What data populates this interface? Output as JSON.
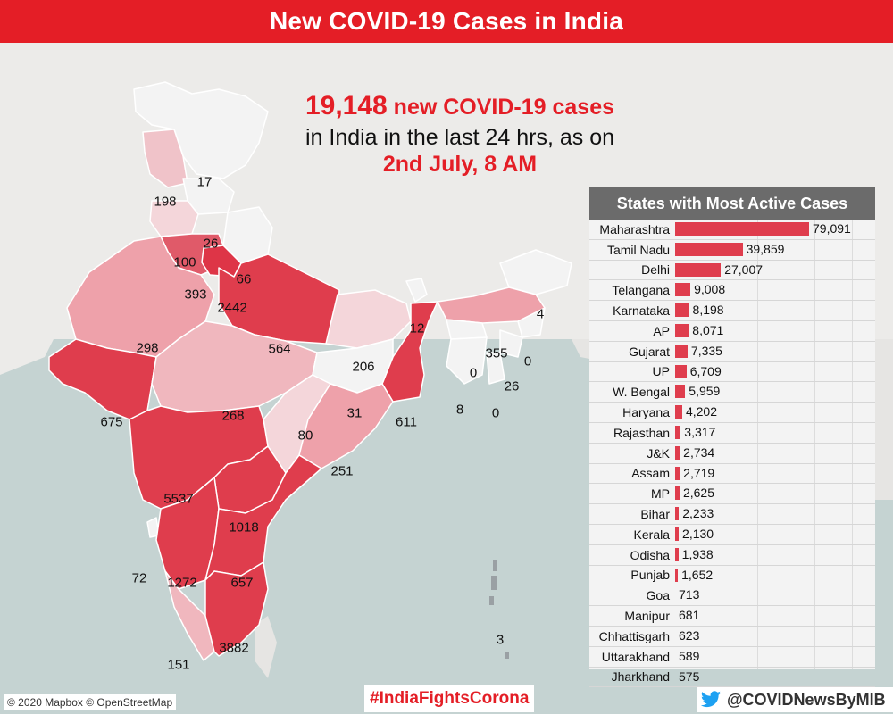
{
  "header": {
    "title": "New COVID-19 Cases in India"
  },
  "headline": {
    "count": "19,148",
    "count_suffix": " new COVID-19 cases",
    "line2": "in India in the last 24 hrs, as on",
    "date": "2nd July, 8 AM"
  },
  "map_labels": {
    "ladakh": "17",
    "himachal": "198",
    "punjab": "26",
    "chandigarh": "100",
    "uttarakhand": "66",
    "haryana": "393",
    "delhi": "2442",
    "rajasthan": "298",
    "up": "564",
    "bihar": "206",
    "sikkim": "12",
    "arunachal": "4",
    "assam": "355",
    "nagaland": "0",
    "meghalaya": "0",
    "manipur": "26",
    "tripura": "8",
    "mizoram": "0",
    "gujarat": "675",
    "mp": "268",
    "jharkhand": "31",
    "wb": "611",
    "chhattisgarh": "80",
    "odisha": "251",
    "maharashtra": "5537",
    "telangana": "1018",
    "goa": "72",
    "karnataka": "1272",
    "ap": "657",
    "kerala": "151",
    "tamilnadu": "3882",
    "andaman": "3"
  },
  "panel": {
    "title": "States with Most Active Cases",
    "max_value": 79091,
    "rows": [
      {
        "state": "Maharashtra",
        "value": 79091,
        "label": "79,091"
      },
      {
        "state": "Tamil Nadu",
        "value": 39859,
        "label": "39,859"
      },
      {
        "state": "Delhi",
        "value": 27007,
        "label": "27,007"
      },
      {
        "state": "Telangana",
        "value": 9008,
        "label": "9,008"
      },
      {
        "state": "Karnataka",
        "value": 8198,
        "label": "8,198"
      },
      {
        "state": "AP",
        "value": 8071,
        "label": "8,071"
      },
      {
        "state": "Gujarat",
        "value": 7335,
        "label": "7,335"
      },
      {
        "state": "UP",
        "value": 6709,
        "label": "6,709"
      },
      {
        "state": "W. Bengal",
        "value": 5959,
        "label": "5,959"
      },
      {
        "state": "Haryana",
        "value": 4202,
        "label": "4,202"
      },
      {
        "state": "Rajasthan",
        "value": 3317,
        "label": "3,317"
      },
      {
        "state": "J&K",
        "value": 2734,
        "label": "2,734"
      },
      {
        "state": "Assam",
        "value": 2719,
        "label": "2,719"
      },
      {
        "state": "MP",
        "value": 2625,
        "label": "2,625"
      },
      {
        "state": "Bihar",
        "value": 2233,
        "label": "2,233"
      },
      {
        "state": "Kerala",
        "value": 2130,
        "label": "2,130"
      },
      {
        "state": "Odisha",
        "value": 1938,
        "label": "1,938"
      },
      {
        "state": "Punjab",
        "value": 1652,
        "label": "1,652"
      },
      {
        "state": "Goa",
        "value": 713,
        "label": "713"
      },
      {
        "state": "Manipur",
        "value": 681,
        "label": "681"
      },
      {
        "state": "Chhattisgarh",
        "value": 623,
        "label": "623"
      },
      {
        "state": "Uttarakhand",
        "value": 589,
        "label": "589"
      },
      {
        "state": "Jharkhand",
        "value": 575,
        "label": "575"
      }
    ]
  },
  "footer": {
    "credit": "© 2020 Mapbox © OpenStreetMap",
    "hashtag": "#IndiaFightsCorona",
    "handle": "@COVIDNewsByMIB"
  },
  "icons": {
    "twitter": "twitter-bird-icon"
  },
  "colors": {
    "brand_red": "#e41e26",
    "high": "#e03c4c",
    "mid": "#eea1aa",
    "low": "#f4d6da",
    "none": "#f3f3f3"
  }
}
